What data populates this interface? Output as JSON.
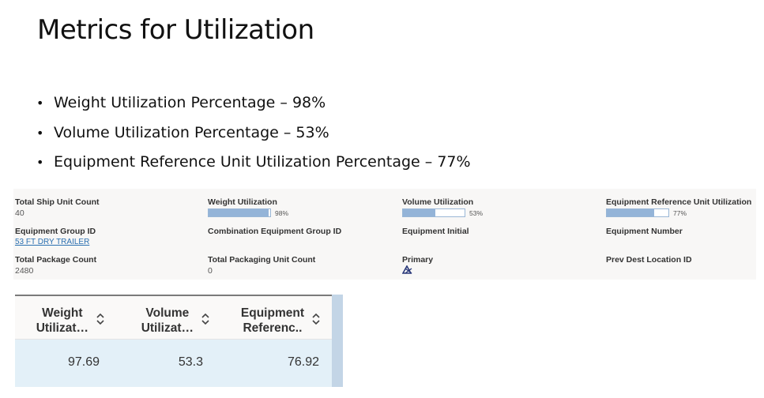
{
  "slide": {
    "title": "Metrics for Utilization",
    "bullets": [
      "Weight Utilization Percentage – 98%",
      "Volume Utilization Percentage – 53%",
      "Equipment Reference Unit Utilization Percentage – 77%"
    ],
    "bullet_glyph": "•"
  },
  "details": {
    "total_ship_unit_count": {
      "label": "Total Ship Unit Count",
      "value": "40"
    },
    "weight_utilization": {
      "label": "Weight Utilization",
      "pct": "98%",
      "fill": 98
    },
    "volume_utilization": {
      "label": "Volume Utilization",
      "pct": "53%",
      "fill": 53
    },
    "equipment_ref_unit_utilization": {
      "label": "Equipment Reference Unit Utilization",
      "pct": "77%",
      "fill": 77
    },
    "equipment_group_id": {
      "label": "Equipment Group ID",
      "value": "53 FT DRY TRAILER"
    },
    "combination_equipment_group_id": {
      "label": "Combination Equipment Group ID",
      "value": ""
    },
    "equipment_initial": {
      "label": "Equipment Initial",
      "value": ""
    },
    "equipment_number": {
      "label": "Equipment Number",
      "value": ""
    },
    "total_package_count": {
      "label": "Total Package Count",
      "value": "2480"
    },
    "total_packaging_unit_count": {
      "label": "Total Packaging Unit Count",
      "value": "0"
    },
    "primary": {
      "label": "Primary",
      "icon": "primary-checkbox-icon"
    },
    "prev_dest_location_id": {
      "label": "Prev Dest Location ID",
      "value": ""
    }
  },
  "grid": {
    "columns": [
      {
        "line1": "Weight",
        "line2": "Utilizat…",
        "sort_icon": "sort-up-down-icon"
      },
      {
        "line1": "Volume",
        "line2": "Utilizat…",
        "sort_icon": "sort-up-down-icon"
      },
      {
        "line1": "Equipment",
        "line2": "Referenc..",
        "sort_icon": "sort-up-down-icon"
      }
    ],
    "rows": [
      [
        "97.69",
        "53.3",
        "76.92"
      ]
    ]
  },
  "colors": {
    "bar_fill": "#94b4d8",
    "link": "#2a6fb0",
    "row_selected": "#e3f0f8"
  }
}
